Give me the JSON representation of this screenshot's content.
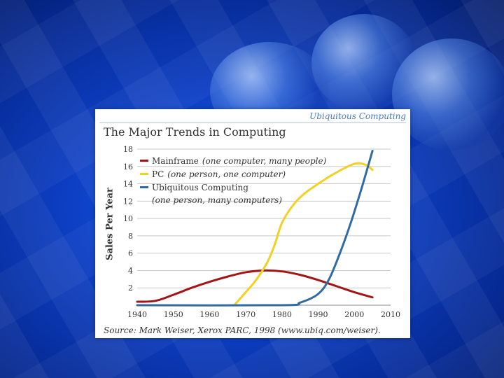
{
  "brand": "Ubiquitous Computing",
  "source": "Source: Mark Weiser, Xerox PARC, 1998 (www.ubiq.com/weiser).",
  "chart_data": {
    "type": "line",
    "title": "The Major Trends in Computing",
    "xlabel": "",
    "ylabel": "Sales Per Year",
    "xlim": [
      1940,
      2010
    ],
    "ylim": [
      0,
      18
    ],
    "x_ticks": [
      1940,
      1950,
      1960,
      1970,
      1980,
      1990,
      2000,
      2010
    ],
    "y_ticks": [
      2,
      4,
      6,
      8,
      10,
      12,
      14,
      16,
      18
    ],
    "grid": true,
    "legend": "top-left",
    "series": [
      {
        "name": "Mainframe",
        "note": "(one computer, many people)",
        "color": "#a31515",
        "x": [
          1940,
          1945,
          1950,
          1955,
          1960,
          1965,
          1970,
          1975,
          1980,
          1985,
          1990,
          1995,
          2000,
          2005
        ],
        "y": [
          0.4,
          0.5,
          1.2,
          2.0,
          2.7,
          3.3,
          3.8,
          4.0,
          3.9,
          3.5,
          2.9,
          2.2,
          1.5,
          0.9
        ]
      },
      {
        "name": "PC",
        "note": "(one person, one computer)",
        "color": "#f2d024",
        "x": [
          1967,
          1970,
          1973,
          1976,
          1978,
          1980,
          1983,
          1986,
          1990,
          1995,
          2000,
          2003,
          2005
        ],
        "y": [
          0.1,
          1.5,
          3.0,
          5.0,
          7.0,
          9.5,
          11.5,
          12.8,
          14.0,
          15.3,
          16.3,
          16.2,
          15.6
        ]
      },
      {
        "name": "Ubiquitous Computing",
        "note": "(one person, many computers)",
        "color": "#2f6aa3",
        "x": [
          1940,
          1980,
          1985,
          1990,
          1993,
          1996,
          1999,
          2002,
          2005
        ],
        "y": [
          0.0,
          0.0,
          0.3,
          1.3,
          3.0,
          6.0,
          9.5,
          13.5,
          17.8
        ]
      }
    ]
  }
}
